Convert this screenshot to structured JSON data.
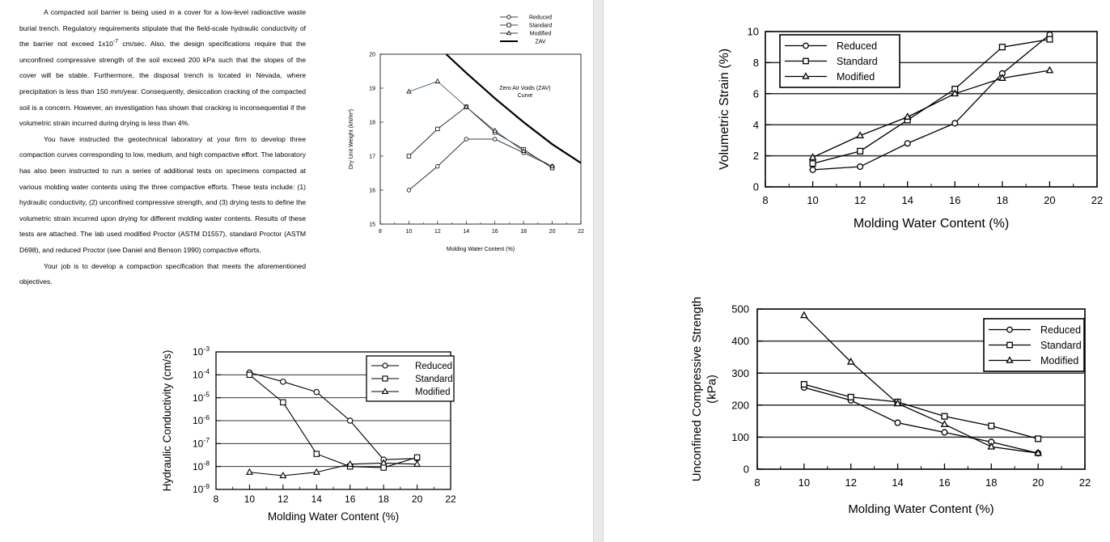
{
  "document": {
    "paragraphs": [
      {
        "text": "A compacted soil barrier is being used in a cover for a low-level radioactive waste burial trench. Regulatory requirements stipulate that the field-scale hydraulic conductivity of the barrier not exceed 1x10",
        "superscript": "-7",
        "text_after": " cm/sec. Also, the design specifications require that the unconfined compressive strength of the soil exceed 200 kPa such that the slopes of the cover will be stable. Furthermore, the disposal trench is located in Nevada, where precipitation is less than 150 mm/year. Consequently, desiccation cracking of the compacted soil is a concern. However, an investigation has shown that cracking is inconsequential if the volumetric strain incurred during drying is less than 4%."
      },
      {
        "text": "You have instructed the geotechnical laboratory at your firm to develop three compaction curves corresponding to low, medium, and high compactive effort. The laboratory has also been instructed to run a series of additional tests on specimens compacted at various molding water contents using the three compactive efforts. These tests include: (1) hydraulic conductivity, (2) unconfined compressive strength, and (3) drying tests to define the volumetric strain incurred upon drying for different molding water contents. Results of these tests are attached. The lab used modified Proctor (ASTM D1557), standard Proctor (ASTM D698), and reduced Proctor (see Daniel and Benson 1990) compactive efforts."
      },
      {
        "text": "Your job is to develop a compaction specification that meets the aforementioned objectives."
      }
    ]
  },
  "chart_data": [
    {
      "id": "compaction",
      "type": "line",
      "title": "",
      "xlabel": "Molding Water Content (%)",
      "ylabel": "Dry Unit Weight (kN/m³)",
      "xlim": [
        8,
        22
      ],
      "ylim": [
        15,
        20
      ],
      "xticks": [
        "8",
        "10",
        "12",
        "14",
        "16",
        "18",
        "20",
        "22"
      ],
      "yticks": [
        "15",
        "16",
        "17",
        "18",
        "19",
        "20"
      ],
      "series": [
        {
          "name": "Reduced",
          "marker": "circle",
          "x": [
            10,
            12,
            14,
            16,
            18,
            20
          ],
          "y": [
            16.0,
            16.7,
            17.5,
            17.5,
            17.1,
            16.7
          ]
        },
        {
          "name": "Standard",
          "marker": "square",
          "x": [
            10,
            12,
            14,
            16,
            18,
            20
          ],
          "y": [
            17.0,
            17.8,
            18.45,
            17.7,
            17.2,
            16.65
          ]
        },
        {
          "name": "Modified",
          "marker": "triangle",
          "x": [
            10,
            12,
            14,
            16,
            18,
            20
          ],
          "y": [
            18.9,
            19.2,
            18.45,
            17.75,
            17.15,
            16.7
          ]
        },
        {
          "name": "ZAV",
          "marker": "none",
          "x": [
            12.6,
            14,
            16,
            18,
            20,
            22
          ],
          "y": [
            20.0,
            19.45,
            18.7,
            18.0,
            17.35,
            16.8
          ]
        }
      ],
      "annotation": "Zero Air Voids (ZAV) Curve"
    },
    {
      "id": "conductivity",
      "type": "line",
      "title": "",
      "xlabel": "Molding Water Content (%)",
      "ylabel": "Hydraulic Conductivity (cm/s)",
      "xlim": [
        8,
        22
      ],
      "ylim_log10": [
        -9,
        -3
      ],
      "xticks": [
        "8",
        "10",
        "12",
        "14",
        "16",
        "18",
        "20",
        "22"
      ],
      "yticks": [
        "10^-3",
        "10^-4",
        "10^-5",
        "10^-6",
        "10^-7",
        "10^-8",
        "10^-9"
      ],
      "series": [
        {
          "name": "Reduced",
          "marker": "circle",
          "x": [
            10,
            12,
            14,
            16,
            18,
            20
          ],
          "log10_y": [
            -3.9,
            -4.3,
            -4.75,
            -6.0,
            -7.7,
            -7.65
          ]
        },
        {
          "name": "Standard",
          "marker": "square",
          "x": [
            10,
            12,
            14,
            16,
            18,
            20
          ],
          "log10_y": [
            -4.0,
            -5.2,
            -7.45,
            -8.0,
            -8.05,
            -7.6
          ]
        },
        {
          "name": "Modified",
          "marker": "triangle",
          "x": [
            10,
            12,
            14,
            16,
            18,
            20
          ],
          "log10_y": [
            -8.25,
            -8.4,
            -8.25,
            -7.9,
            -7.85,
            -7.9
          ]
        }
      ]
    },
    {
      "id": "volumetric-strain",
      "type": "line",
      "title": "",
      "xlabel": "Molding Water Content (%)",
      "ylabel": "Volumetric Strain (%)",
      "xlim": [
        8,
        22
      ],
      "ylim": [
        0,
        10
      ],
      "xticks": [
        "8",
        "10",
        "12",
        "14",
        "16",
        "18",
        "20",
        "22"
      ],
      "yticks": [
        "0",
        "2",
        "4",
        "6",
        "8",
        "10"
      ],
      "series": [
        {
          "name": "Reduced",
          "marker": "circle",
          "x": [
            10,
            12,
            14,
            16,
            18,
            20
          ],
          "y": [
            1.1,
            1.3,
            2.8,
            4.1,
            7.3,
            9.8
          ]
        },
        {
          "name": "Standard",
          "marker": "square",
          "x": [
            10,
            12,
            14,
            16,
            18,
            20
          ],
          "y": [
            1.5,
            2.3,
            4.3,
            6.3,
            9.0,
            9.5
          ]
        },
        {
          "name": "Modified",
          "marker": "triangle",
          "x": [
            10,
            12,
            14,
            16,
            18,
            20
          ],
          "y": [
            1.9,
            3.3,
            4.5,
            6.0,
            7.0,
            7.5
          ]
        }
      ]
    },
    {
      "id": "ucs",
      "type": "line",
      "title": "",
      "xlabel": "Molding Water Content (%)",
      "ylabel": "Unconfined Compressive Strength (kPa)",
      "xlim": [
        8,
        22
      ],
      "ylim": [
        0,
        500
      ],
      "xticks": [
        "8",
        "10",
        "12",
        "14",
        "16",
        "18",
        "20",
        "22"
      ],
      "yticks": [
        "0",
        "100",
        "200",
        "300",
        "400",
        "500"
      ],
      "series": [
        {
          "name": "Reduced",
          "marker": "circle",
          "x": [
            10,
            12,
            14,
            16,
            18,
            20
          ],
          "y": [
            255,
            215,
            145,
            115,
            85,
            50
          ]
        },
        {
          "name": "Standard",
          "marker": "square",
          "x": [
            10,
            12,
            14,
            16,
            18,
            20
          ],
          "y": [
            265,
            225,
            210,
            165,
            135,
            95
          ]
        },
        {
          "name": "Modified",
          "marker": "triangle",
          "x": [
            10,
            12,
            14,
            16,
            18,
            20
          ],
          "y": [
            480,
            335,
            205,
            140,
            70,
            50
          ]
        }
      ]
    }
  ]
}
